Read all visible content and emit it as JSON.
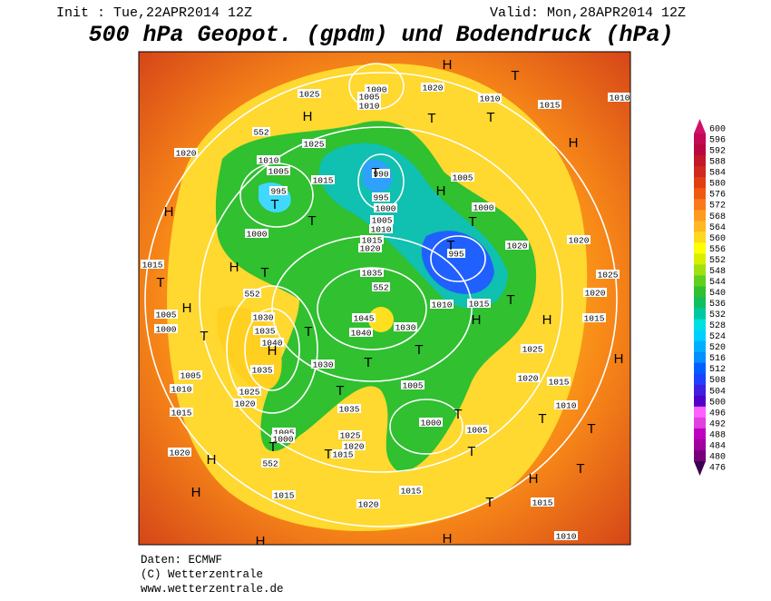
{
  "header": {
    "init": "Init : Tue,22APR2014 12Z",
    "valid": "Valid: Mon,28APR2014 12Z",
    "title": "500 hPa Geopot. (gpdm) und Bodendruck (hPa)"
  },
  "colorbar": {
    "values": [
      600,
      596,
      592,
      588,
      584,
      580,
      576,
      572,
      568,
      564,
      560,
      556,
      552,
      548,
      544,
      540,
      536,
      532,
      528,
      524,
      520,
      516,
      512,
      508,
      504,
      500,
      496,
      492,
      488,
      484,
      480,
      476
    ],
    "colors": [
      "#d0106a",
      "#c40a55",
      "#b8083f",
      "#c01a2a",
      "#d02a1e",
      "#e04010",
      "#f05a10",
      "#f87a18",
      "#ff9a20",
      "#ffb820",
      "#ffd820",
      "#ffff00",
      "#d8f000",
      "#a0e010",
      "#60d020",
      "#30c030",
      "#10c060",
      "#00c8a0",
      "#00e0e0",
      "#00d0ff",
      "#00b0ff",
      "#0090ff",
      "#0060ff",
      "#2040ff",
      "#4020e0",
      "#5000c8",
      "#ff60ff",
      "#e040e0",
      "#c000c0",
      "#a000a0",
      "#7a007a",
      "#3c0050"
    ]
  },
  "map": {
    "labels": [
      "1000",
      "1005",
      "1010",
      "1020",
      "1025",
      "1010",
      "1015",
      "1025",
      "1010",
      "1005",
      "995",
      "1000",
      "1015",
      "990",
      "995",
      "1000",
      "1005",
      "1010",
      "1015",
      "1020",
      "1035",
      "1030",
      "1035",
      "1040",
      "1035",
      "1025",
      "1020",
      "1005",
      "1000",
      "1030",
      "1035",
      "1025",
      "1020",
      "1015",
      "1045",
      "1040",
      "1030",
      "1005",
      "1000",
      "1005",
      "1010",
      "1015",
      "995",
      "1000",
      "1005",
      "1020",
      "1025",
      "1020",
      "1015",
      "1010",
      "1015",
      "1015",
      "1020",
      "1015",
      "1010",
      "1005",
      "1000",
      "1005",
      "1010",
      "1015",
      "1020",
      "1015",
      "1020",
      "1025",
      "1020",
      "1015",
      "1020",
      "1010",
      "552",
      "552",
      "552",
      "552"
    ],
    "markers": [
      "H",
      "T",
      "H",
      "T",
      "T",
      "H",
      "T",
      "T",
      "T",
      "H",
      "T",
      "T",
      "H",
      "T",
      "H",
      "T",
      "H",
      "T",
      "H",
      "T",
      "T",
      "T",
      "H",
      "T",
      "H",
      "T",
      "T",
      "T",
      "T",
      "H",
      "T",
      "H",
      "H",
      "H",
      "H",
      "T",
      "T",
      "T",
      "H",
      "T"
    ]
  },
  "footer": {
    "source": "Daten: ECMWF",
    "copyright": "(C) Wetterzentrale",
    "url": "www.wetterzentrale.de"
  }
}
